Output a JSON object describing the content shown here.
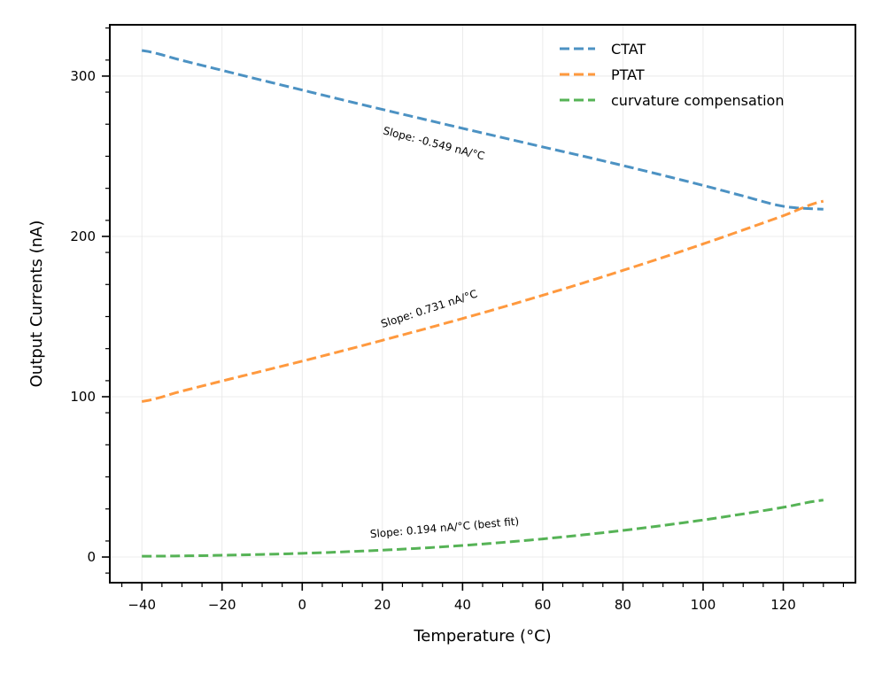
{
  "chart_data": {
    "type": "line",
    "xlabel": "Temperature (°C)",
    "ylabel": "Output Currents (nA)",
    "xlim": [
      -48,
      138
    ],
    "ylim": [
      -16,
      332
    ],
    "xticks": [
      -40,
      -20,
      0,
      20,
      40,
      60,
      80,
      100,
      120
    ],
    "xtick_labels": [
      "−40",
      "−20",
      "0",
      "20",
      "40",
      "60",
      "80",
      "100",
      "120"
    ],
    "yticks": [
      0,
      100,
      200,
      300
    ],
    "ytick_labels": [
      "0",
      "100",
      "200",
      "300"
    ],
    "grid": true,
    "legend_position": "top-right",
    "x": [
      -40,
      -30,
      -20,
      -10,
      0,
      10,
      20,
      30,
      40,
      50,
      60,
      70,
      80,
      90,
      100,
      110,
      120,
      130
    ],
    "series": [
      {
        "name": "CTAT",
        "color": "#1f77b4",
        "values": [
          316,
          309.8,
          303.6,
          297.4,
          291.3,
          285.2,
          279.2,
          273.3,
          267.4,
          261.6,
          255.8,
          250.1,
          244.2,
          238.1,
          231.8,
          225.2,
          218.8,
          217
        ]
      },
      {
        "name": "PTAT",
        "color": "#ff7f0e",
        "values": [
          97,
          103.5,
          109.8,
          116,
          122.2,
          128.6,
          135.2,
          141.9,
          148.8,
          155.9,
          163.3,
          170.9,
          178.8,
          186.9,
          195.3,
          204,
          212.9,
          222
        ]
      },
      {
        "name": "curvature compensation",
        "color": "#2ca02c",
        "values": [
          0.5,
          0.7,
          1.1,
          1.6,
          2.3,
          3.2,
          4.3,
          5.6,
          7.2,
          9.1,
          11.3,
          13.8,
          16.6,
          19.7,
          23.1,
          26.9,
          31,
          35.5
        ]
      }
    ],
    "annotations": [
      {
        "text": "Slope: -0.549 nA/°C",
        "x": 20,
        "y": 264,
        "angle": 14.4
      },
      {
        "text": "Slope: 0.731 nA/°C",
        "x": 20,
        "y": 143,
        "angle": -18
      },
      {
        "text": "Slope: 0.194 nA/°C (best fit)",
        "x": 17,
        "y": 12,
        "angle": -5
      }
    ]
  }
}
